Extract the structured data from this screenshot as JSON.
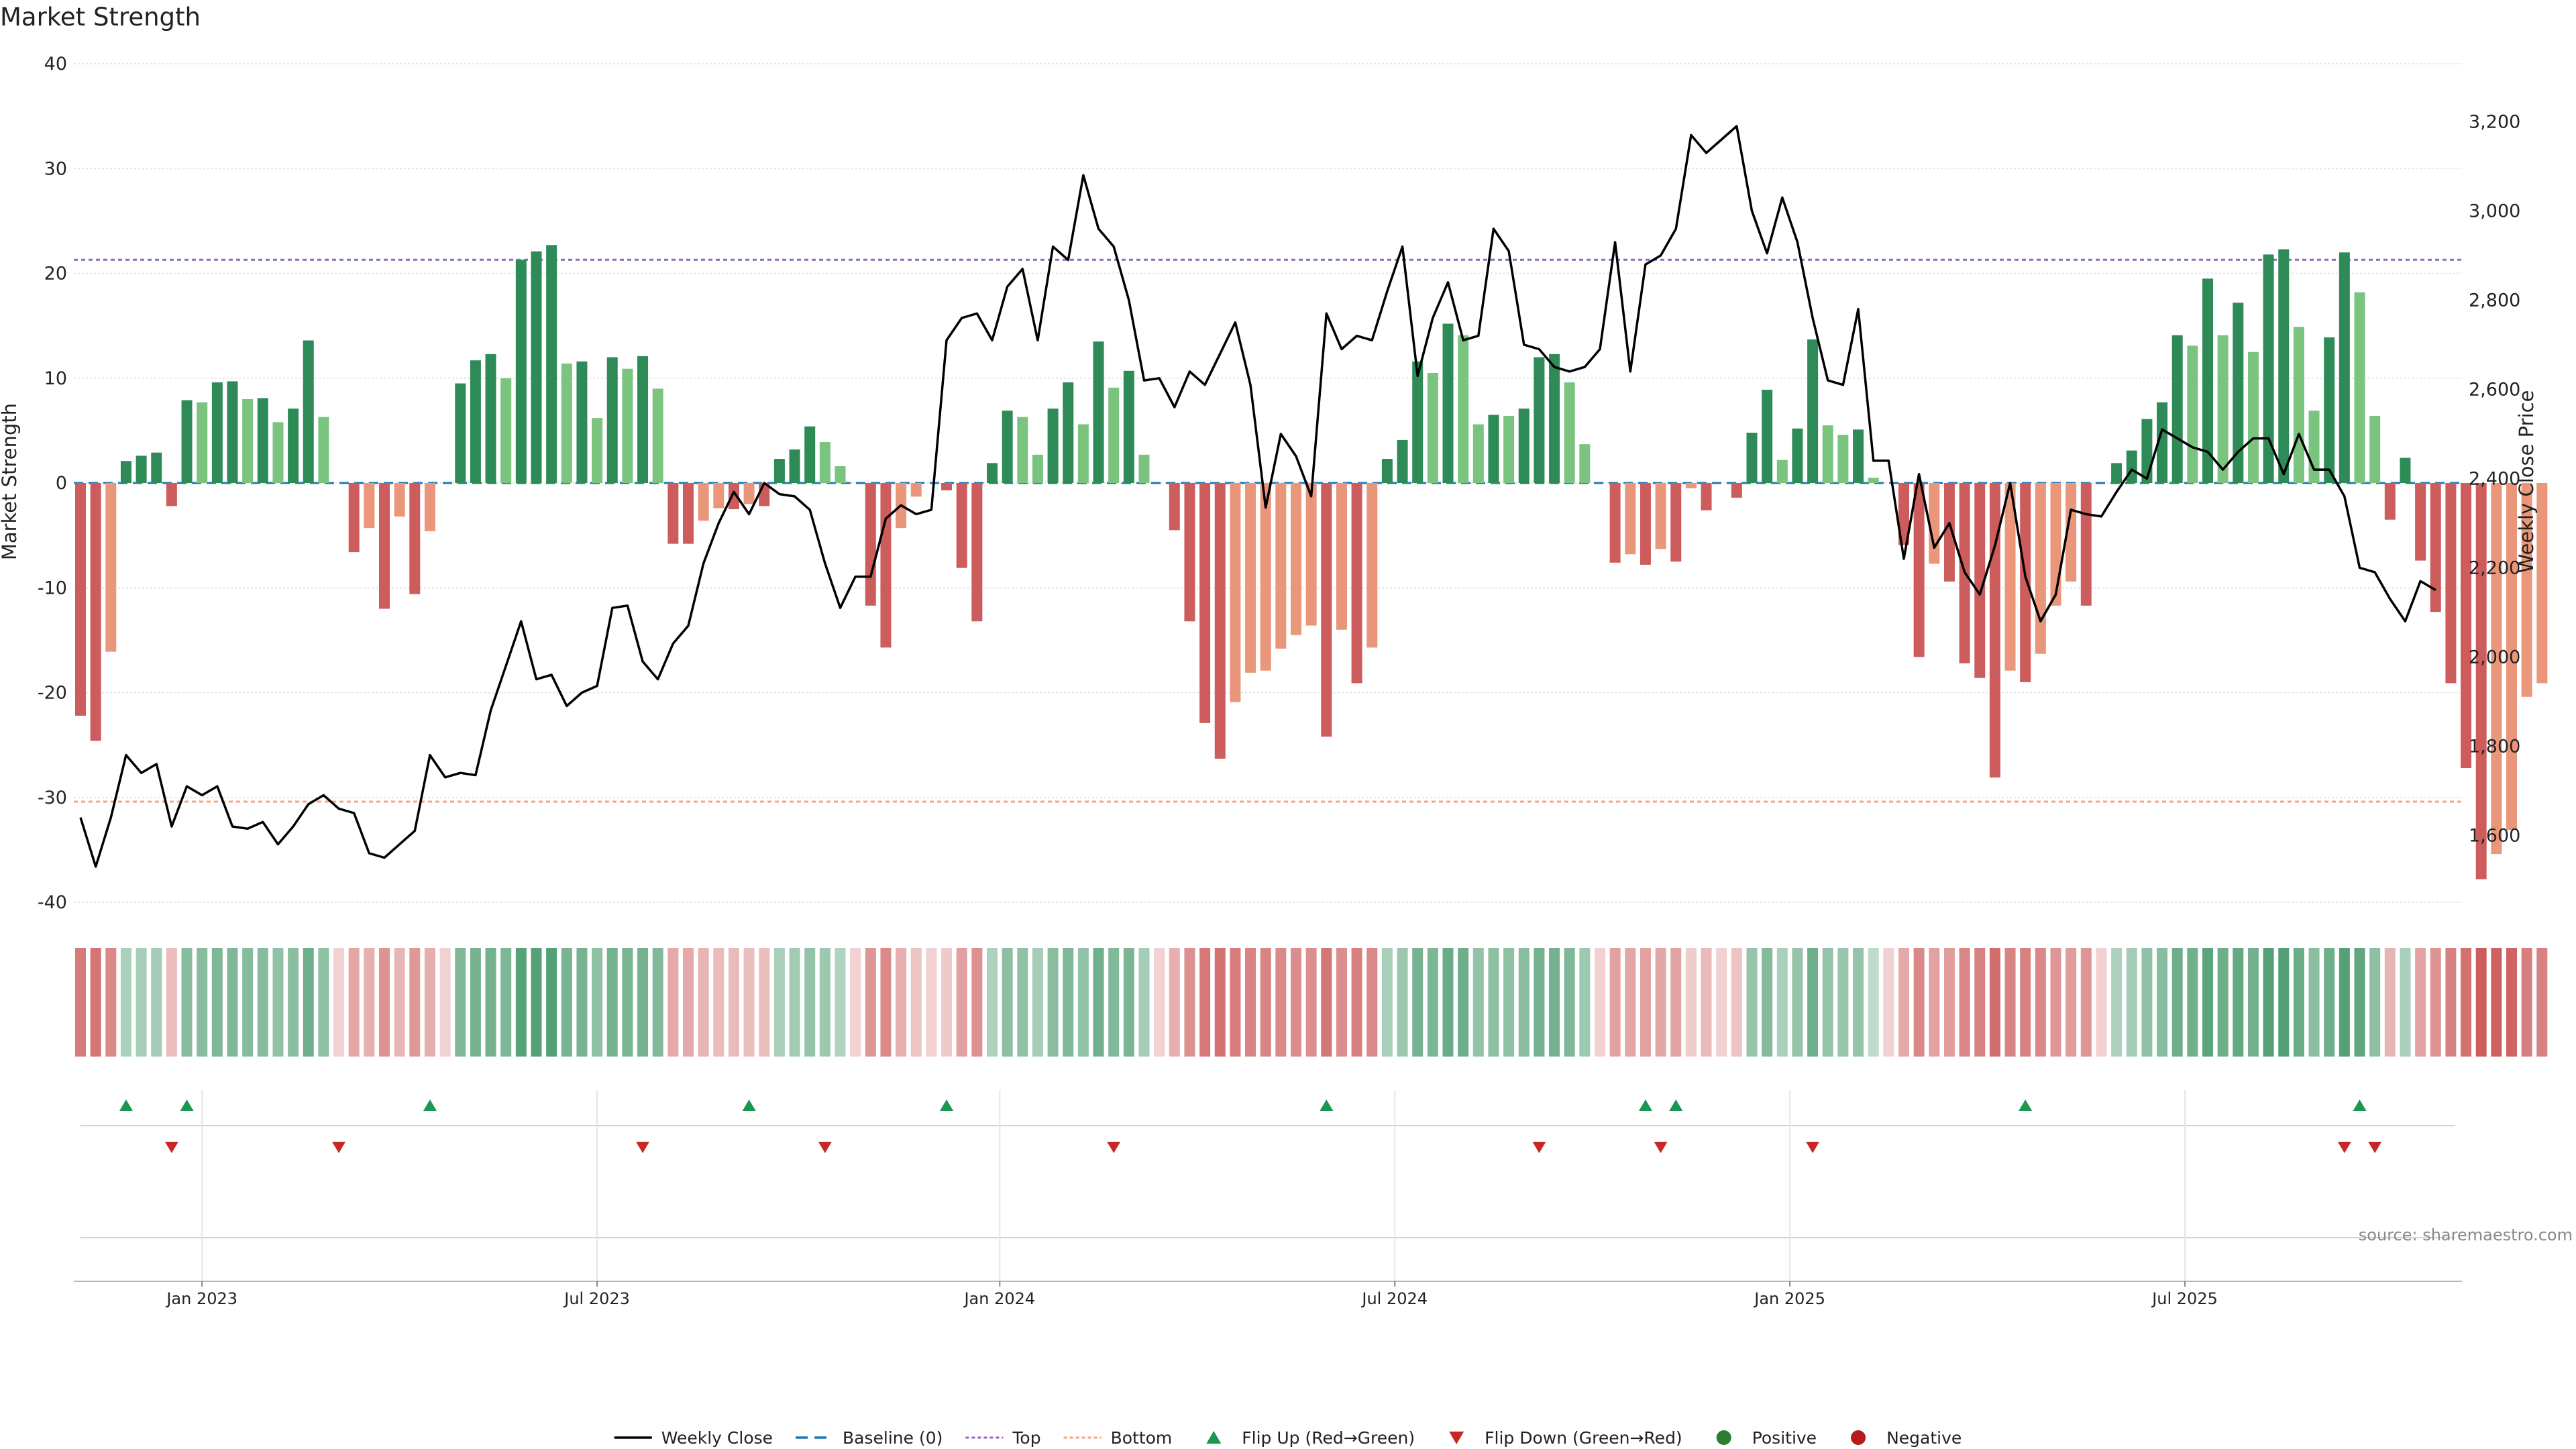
{
  "page": {
    "title": "Market Strength",
    "source": "source: sharemaestro.com"
  },
  "colors": {
    "strong_green": "#2e8b57",
    "light_green": "#7bc47f",
    "strong_red": "#cd5c5c",
    "light_red": "#e9967a",
    "top_line": "#9467bd",
    "bottom_line": "#f4a582",
    "baseline": "#1f77b4",
    "weekly_close": "#000000",
    "flip_up": "#1a9850",
    "flip_down": "#c62828",
    "positive": "#2e7d32",
    "negative": "#b71c1c"
  },
  "legend": [
    {
      "label": "Weekly Close",
      "kind": "line",
      "color": "#000000"
    },
    {
      "label": "Baseline (0)",
      "kind": "dash",
      "color": "#1f77b4"
    },
    {
      "label": "Top",
      "kind": "dot",
      "color": "#9467bd"
    },
    {
      "label": "Bottom",
      "kind": "dot",
      "color": "#f4a582"
    },
    {
      "label": "Flip Up (Red→Green)",
      "kind": "triangle-up",
      "color": "#1a9850"
    },
    {
      "label": "Flip Down (Green→Red)",
      "kind": "triangle-down",
      "color": "#c62828"
    },
    {
      "label": "Positive",
      "kind": "circle",
      "color": "#2e7d32"
    },
    {
      "label": "Negative",
      "kind": "circle",
      "color": "#b71c1c"
    }
  ],
  "chart_data": {
    "type": "bar",
    "title": "Market Strength",
    "ylabel": "Market Strength",
    "y2label": "Weekly Close Price",
    "ylim": [
      -40,
      40
    ],
    "y2lim": [
      1450,
      3330
    ],
    "yticks": [
      40,
      30,
      20,
      10,
      0,
      -10,
      -20,
      -30,
      -40
    ],
    "y2ticks": [
      {
        "value": 3200,
        "label": "3,200"
      },
      {
        "value": 3000,
        "label": "3,000"
      },
      {
        "value": 2800,
        "label": "2,800"
      },
      {
        "value": 2600,
        "label": "2,600"
      },
      {
        "value": 2400,
        "label": "2,400"
      },
      {
        "value": 2200,
        "label": "2,200"
      },
      {
        "value": 2000,
        "label": "2,000"
      },
      {
        "value": 1800,
        "label": "1,800"
      },
      {
        "value": 1600,
        "label": "1,600"
      }
    ],
    "x_ticks": [
      {
        "label": "Jan 2023",
        "index": 8
      },
      {
        "label": "Jul 2023",
        "index": 34
      },
      {
        "label": "Jan 2024",
        "index": 60.5
      },
      {
        "label": "Jul 2024",
        "index": 86.5
      },
      {
        "label": "Jan 2025",
        "index": 112.5
      },
      {
        "label": "Jul 2025",
        "index": 138.5
      }
    ],
    "top_line": 21.3,
    "bottom_line": -30.4,
    "grid": true,
    "legend_position": "bottom",
    "strength": [
      -22.2,
      -24.6,
      -16.1,
      2.1,
      2.6,
      2.9,
      -2.2,
      7.9,
      7.7,
      9.6,
      9.7,
      8.0,
      8.1,
      5.8,
      7.1,
      13.6,
      6.3,
      0,
      -6.6,
      -4.3,
      -12.0,
      -3.2,
      -10.6,
      -4.6,
      0,
      9.5,
      11.7,
      12.3,
      10.0,
      21.3,
      22.1,
      22.7,
      11.4,
      11.6,
      6.2,
      12.0,
      10.9,
      12.1,
      9.0,
      -5.8,
      -5.8,
      -3.6,
      -2.4,
      -2.5,
      -2.0,
      -2.2,
      2.3,
      3.2,
      5.4,
      3.9,
      1.6,
      0,
      -11.7,
      -15.7,
      -4.3,
      -1.3,
      0,
      -0.7,
      -8.1,
      -13.2,
      1.9,
      6.9,
      6.3,
      2.7,
      7.1,
      9.6,
      5.6,
      13.5,
      9.1,
      10.7,
      2.7,
      0,
      -4.5,
      -13.2,
      -22.9,
      -26.3,
      -20.9,
      -18.1,
      -17.9,
      -15.8,
      -14.5,
      -13.6,
      -24.2,
      -14.0,
      -19.1,
      -15.7,
      2.3,
      4.1,
      11.6,
      10.5,
      15.2,
      14.1,
      5.6,
      6.5,
      6.4,
      7.1,
      12.0,
      12.3,
      9.6,
      3.7,
      0,
      -7.6,
      -6.8,
      -7.8,
      -6.3,
      -7.5,
      -0.5,
      -2.6,
      0,
      -1.4,
      4.8,
      8.9,
      2.2,
      5.2,
      13.7,
      5.5,
      4.6,
      5.1,
      0.5,
      0,
      -5.9,
      -16.6,
      -7.7,
      -9.4,
      -17.2,
      -18.6,
      -28.1,
      -17.9,
      -19.0,
      -16.3,
      -11.7,
      -9.4,
      -11.7,
      0,
      1.9,
      3.1,
      6.1,
      7.7,
      14.1,
      13.1,
      19.5,
      14.1,
      17.2,
      12.5,
      21.8,
      22.3,
      14.9,
      6.9,
      13.9,
      22.0,
      18.2,
      6.4,
      -3.5,
      2.4,
      -7.4,
      -12.3,
      -19.1,
      -27.2,
      -37.8,
      -35.4,
      -33.1,
      -20.4,
      -19.1
    ],
    "weekly_close": [
      1640,
      1530,
      1640,
      1780,
      1740,
      1760,
      1620,
      1710,
      1690,
      1710,
      1620,
      1615,
      1630,
      1580,
      1620,
      1670,
      1690,
      1660,
      1650,
      1560,
      1550,
      1580,
      1610,
      1780,
      1730,
      1740,
      1735,
      1880,
      1980,
      2080,
      1950,
      1960,
      1890,
      1920,
      1935,
      2110,
      2115,
      1990,
      1950,
      2030,
      2070,
      2210,
      2300,
      2370,
      2320,
      2390,
      2365,
      2360,
      2330,
      2210,
      2110,
      2180,
      2180,
      2310,
      2340,
      2320,
      2330,
      2710,
      2760,
      2770,
      2710,
      2830,
      2870,
      2710,
      2920,
      2890,
      3080,
      2960,
      2920,
      2800,
      2620,
      2625,
      2560,
      2640,
      2610,
      2680,
      2750,
      2610,
      2335,
      2500,
      2450,
      2360,
      2770,
      2690,
      2720,
      2710,
      2820,
      2920,
      2630,
      2760,
      2840,
      2710,
      2720,
      2960,
      2910,
      2700,
      2690,
      2650,
      2640,
      2650,
      2690,
      2930,
      2640,
      2880,
      2900,
      2960,
      3170,
      3130,
      3160,
      3190,
      3000,
      2905,
      3030,
      2930,
      2760,
      2620,
      2610,
      2780,
      2440,
      2440,
      2220,
      2410,
      2245,
      2300,
      2190,
      2140,
      2250,
      2390,
      2180,
      2080,
      2140,
      2330,
      2320,
      2315,
      2370,
      2420,
      2400,
      2510,
      2490,
      2470,
      2460,
      2420,
      2460,
      2490,
      2490,
      2410,
      2500,
      2420,
      2420,
      2360,
      2200,
      2190,
      2130,
      2080,
      2170,
      2150
    ],
    "flip_up_indices": [
      3,
      7,
      23,
      44,
      57,
      82,
      103,
      105,
      128,
      150
    ],
    "flip_down_indices": [
      6,
      17,
      37,
      49,
      68,
      96,
      104,
      114,
      149,
      151
    ],
    "source": "source: sharemaestro.com"
  }
}
